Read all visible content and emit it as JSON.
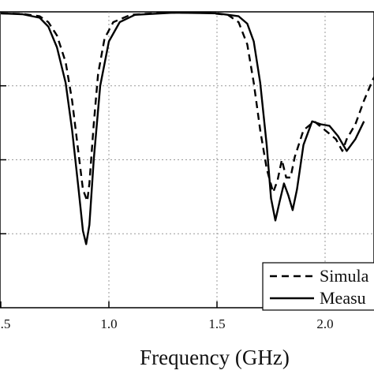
{
  "chart_data": {
    "type": "line",
    "xlabel": "Frequency (GHz)",
    "ylabel": "",
    "title": "",
    "xlim": [
      0.5,
      2.25
    ],
    "ylim": [
      -0.0,
      1.0
    ],
    "x_tick_labels": [
      ".5",
      "1.0",
      "1.5",
      "2.0"
    ],
    "x_ticks": [
      0.5,
      1.0,
      1.5,
      2.0
    ],
    "y_gridlines": [
      0.25,
      0.5,
      0.75
    ],
    "grid": "dotted",
    "legend_position": "bottom-right",
    "series": [
      {
        "name": "Simula",
        "style": "dashed",
        "points": [
          [
            0.5,
            0.995
          ],
          [
            0.6,
            0.993
          ],
          [
            0.68,
            0.985
          ],
          [
            0.72,
            0.965
          ],
          [
            0.76,
            0.92
          ],
          [
            0.8,
            0.83
          ],
          [
            0.83,
            0.7
          ],
          [
            0.86,
            0.52
          ],
          [
            0.88,
            0.4
          ],
          [
            0.9,
            0.36
          ],
          [
            0.91,
            0.42
          ],
          [
            0.93,
            0.62
          ],
          [
            0.95,
            0.79
          ],
          [
            0.98,
            0.91
          ],
          [
            1.02,
            0.965
          ],
          [
            1.1,
            0.99
          ],
          [
            1.25,
            0.997
          ],
          [
            1.45,
            0.997
          ],
          [
            1.55,
            0.99
          ],
          [
            1.6,
            0.965
          ],
          [
            1.64,
            0.89
          ],
          [
            1.67,
            0.76
          ],
          [
            1.7,
            0.6
          ],
          [
            1.73,
            0.47
          ],
          [
            1.76,
            0.39
          ],
          [
            1.78,
            0.43
          ],
          [
            1.8,
            0.5
          ],
          [
            1.82,
            0.44
          ],
          [
            1.84,
            0.44
          ],
          [
            1.86,
            0.51
          ],
          [
            1.9,
            0.6
          ],
          [
            1.95,
            0.63
          ],
          [
            2.0,
            0.6
          ],
          [
            2.05,
            0.57
          ],
          [
            2.08,
            0.53
          ],
          [
            2.1,
            0.57
          ],
          [
            2.14,
            0.62
          ],
          [
            2.18,
            0.7
          ],
          [
            2.22,
            0.77
          ],
          [
            2.25,
            0.81
          ]
        ]
      },
      {
        "name": "Measu",
        "style": "solid",
        "points": [
          [
            0.5,
            0.995
          ],
          [
            0.6,
            0.992
          ],
          [
            0.68,
            0.98
          ],
          [
            0.72,
            0.95
          ],
          [
            0.76,
            0.88
          ],
          [
            0.8,
            0.76
          ],
          [
            0.83,
            0.6
          ],
          [
            0.86,
            0.4
          ],
          [
            0.88,
            0.26
          ],
          [
            0.895,
            0.215
          ],
          [
            0.91,
            0.28
          ],
          [
            0.93,
            0.5
          ],
          [
            0.96,
            0.75
          ],
          [
            1.0,
            0.9
          ],
          [
            1.05,
            0.965
          ],
          [
            1.12,
            0.99
          ],
          [
            1.3,
            0.997
          ],
          [
            1.5,
            0.995
          ],
          [
            1.6,
            0.985
          ],
          [
            1.64,
            0.96
          ],
          [
            1.67,
            0.9
          ],
          [
            1.7,
            0.76
          ],
          [
            1.73,
            0.55
          ],
          [
            1.75,
            0.37
          ],
          [
            1.77,
            0.295
          ],
          [
            1.79,
            0.36
          ],
          [
            1.81,
            0.42
          ],
          [
            1.83,
            0.38
          ],
          [
            1.85,
            0.33
          ],
          [
            1.87,
            0.4
          ],
          [
            1.9,
            0.55
          ],
          [
            1.94,
            0.63
          ],
          [
            1.98,
            0.62
          ],
          [
            2.02,
            0.615
          ],
          [
            2.06,
            0.58
          ],
          [
            2.1,
            0.53
          ],
          [
            2.14,
            0.57
          ],
          [
            2.18,
            0.63
          ]
        ]
      }
    ]
  }
}
